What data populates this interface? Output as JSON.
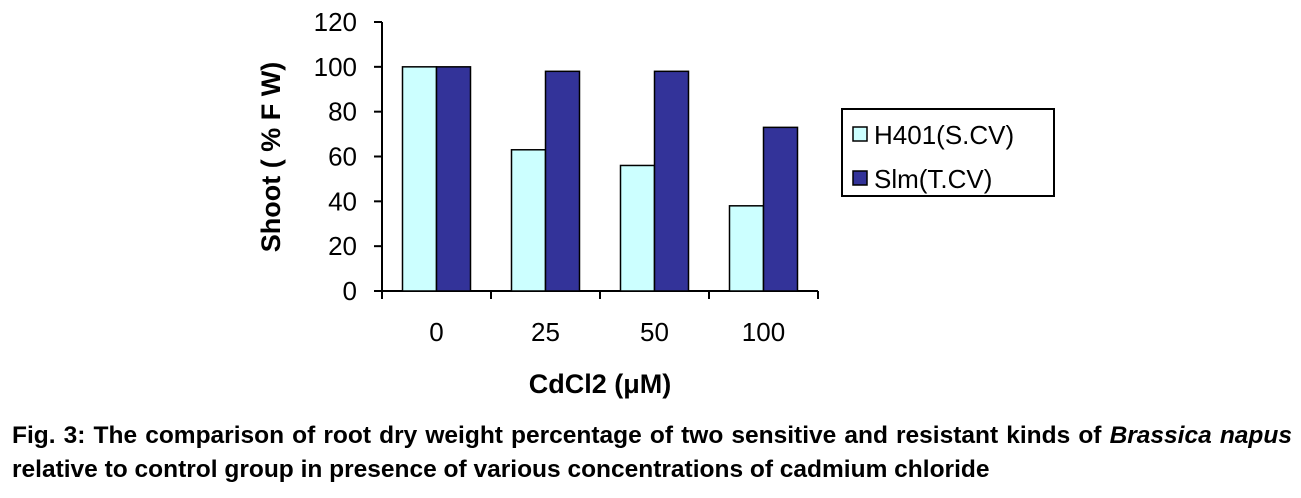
{
  "chart_data": {
    "type": "bar",
    "categories": [
      "0",
      "25",
      "50",
      "100"
    ],
    "series": [
      {
        "name": "H401(S.CV)",
        "values": [
          100,
          63,
          56,
          38
        ],
        "color": "#ccffff"
      },
      {
        "name": "Slm(T.CV)",
        "values": [
          100,
          98,
          98,
          73
        ],
        "color": "#333399"
      }
    ],
    "xlabel": "CdCl2 (μM)",
    "ylabel": "Shoot ( % F W)",
    "ylim": [
      0,
      120
    ],
    "yticks": [
      0,
      20,
      40,
      60,
      80,
      100,
      120
    ],
    "grid": false,
    "legend_position": "right"
  },
  "caption": {
    "label": "Fig. 3:",
    "text_1": " The comparison of root dry weight percentage of two sensitive and resistant kinds of ",
    "species": "Brassica napus",
    "text_2": " relative to control group in presence of various concentrations of cadmium chloride"
  }
}
